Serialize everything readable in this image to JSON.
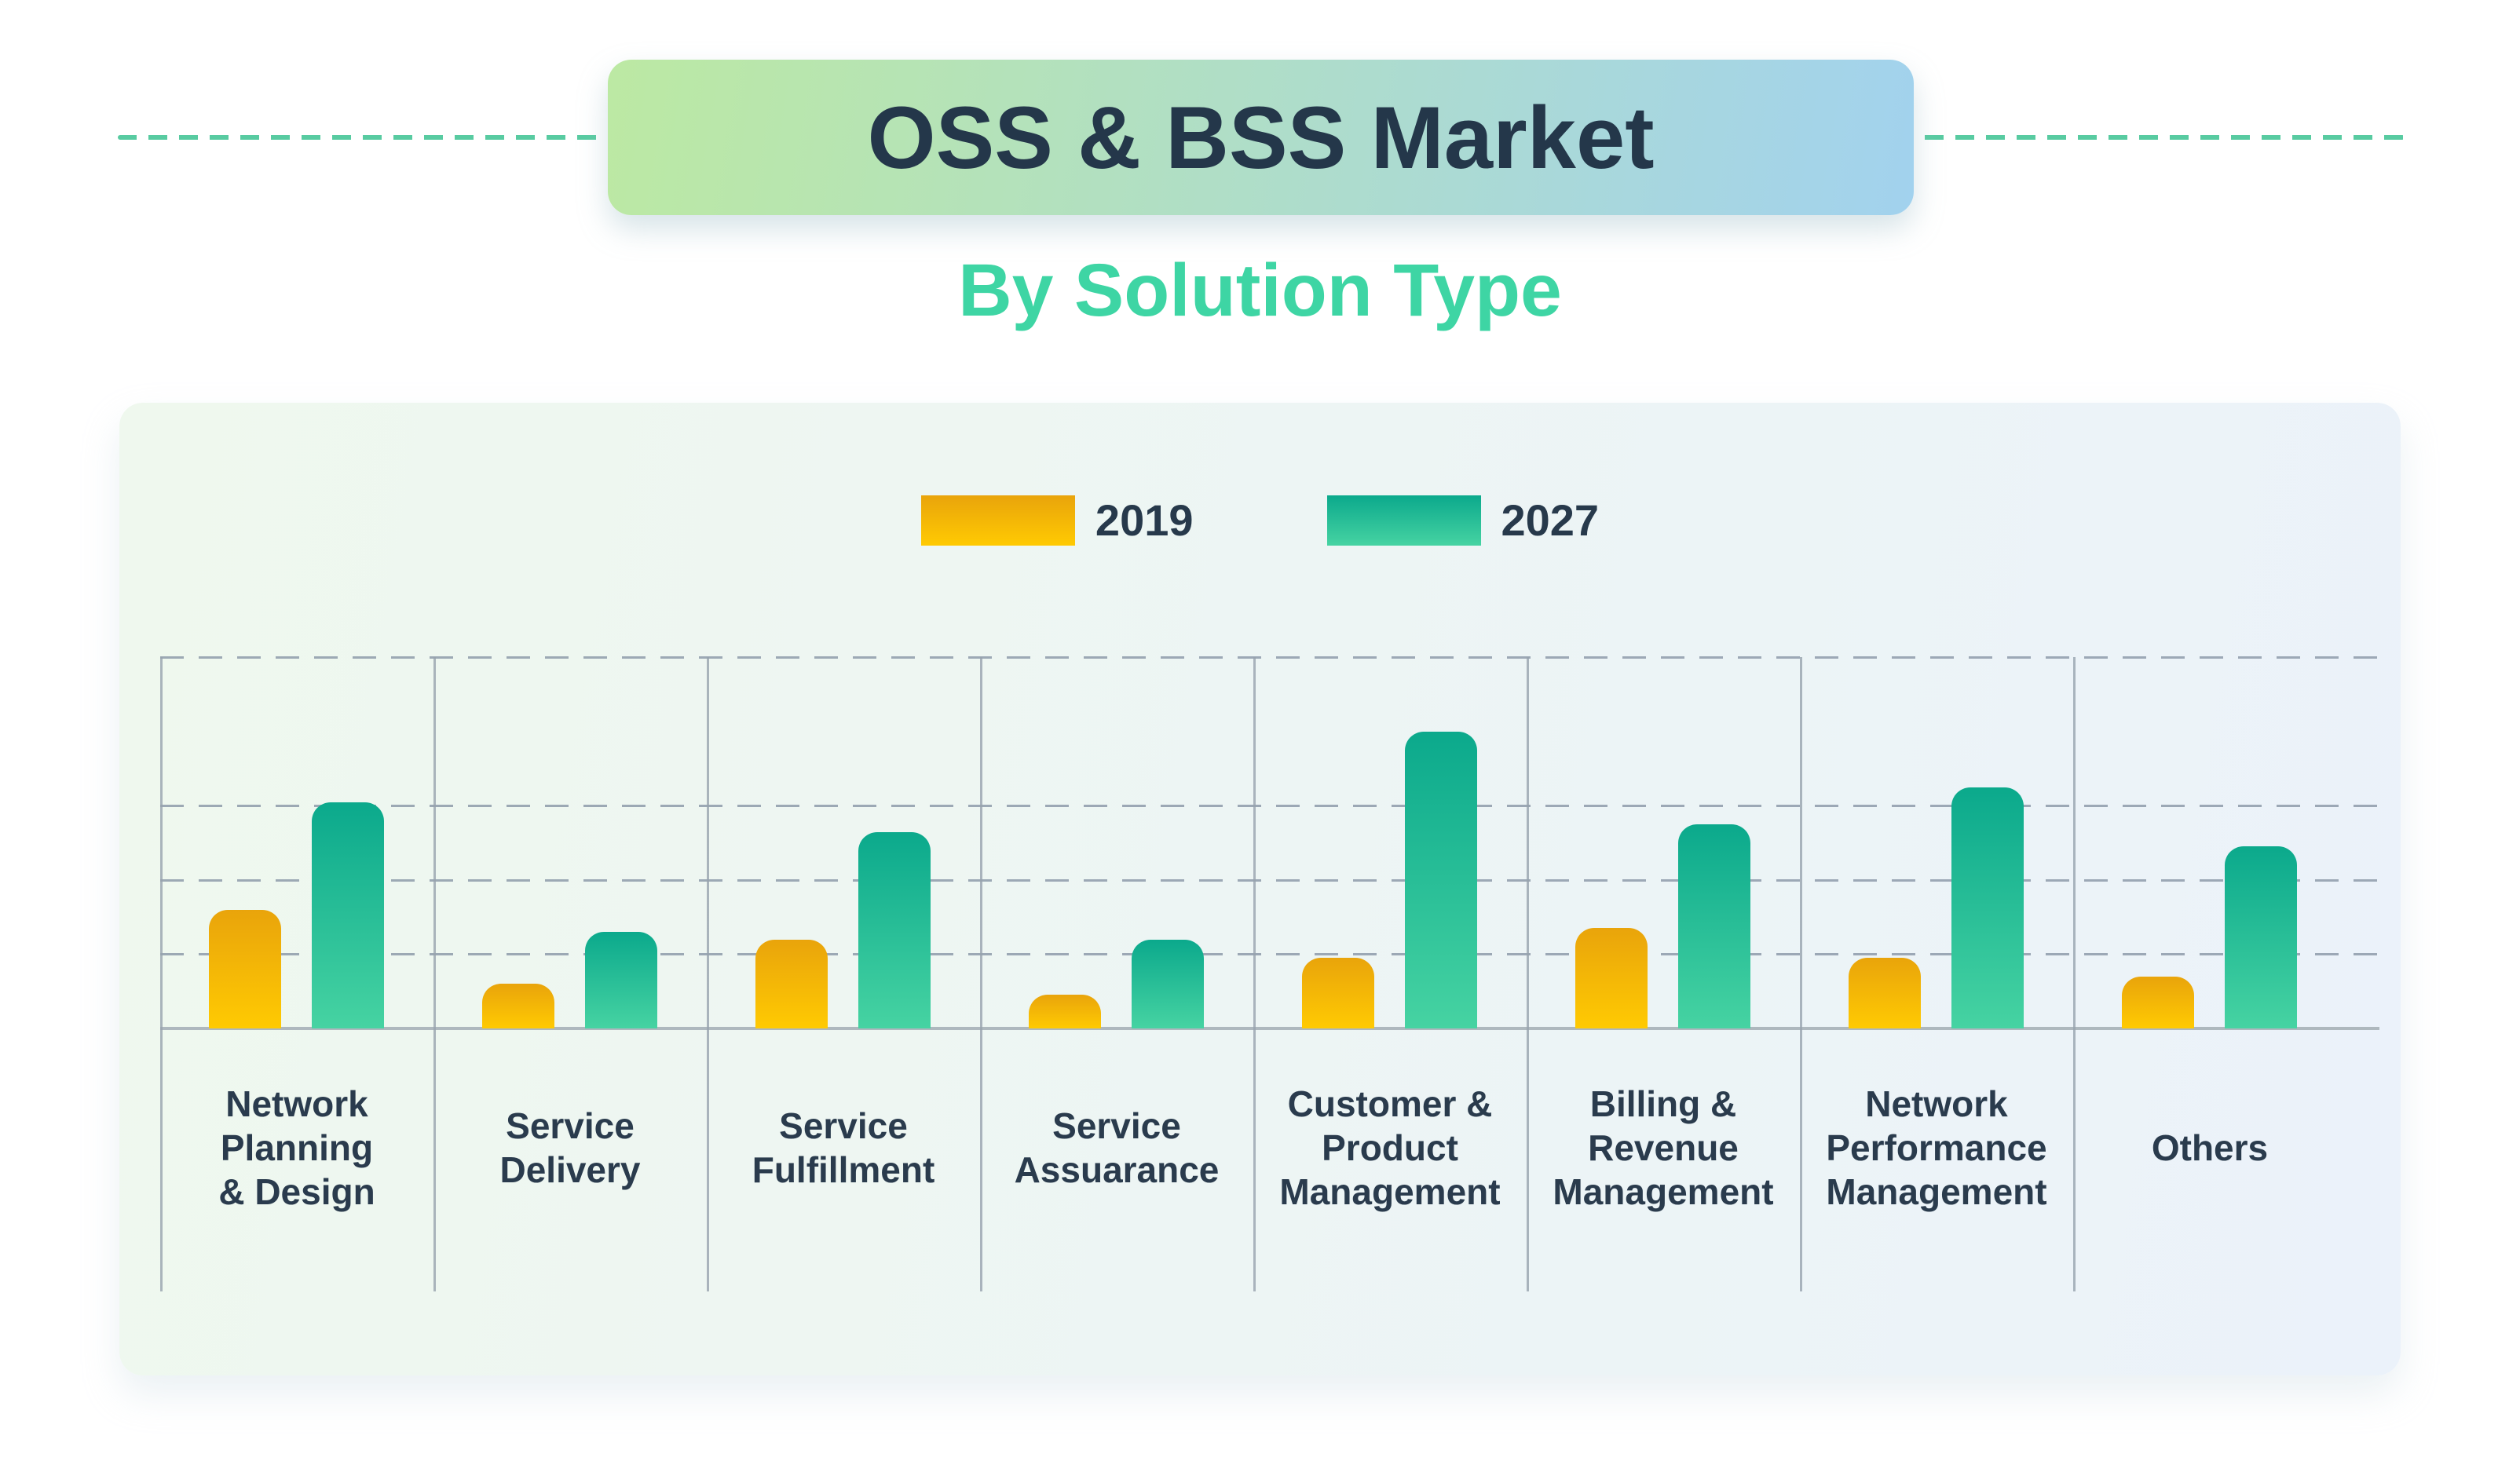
{
  "header": {
    "title": "OSS & BSS Market",
    "subtitle": "By Solution Type"
  },
  "legend": {
    "items": [
      {
        "label": "2019",
        "color_top": "#e9a40b",
        "color_bottom": "#ffca02"
      },
      {
        "label": "2027",
        "color_top": "#0ba98c",
        "color_bottom": "#46d3a2"
      }
    ]
  },
  "chart_data": {
    "type": "bar",
    "title": "OSS & BSS Market",
    "subtitle": "By Solution Type",
    "categories": [
      "Network Planning & Design",
      "Service Delivery",
      "Service Fulfillment",
      "Service Assuarance",
      "Customer & Product Management",
      "Billing & Revenue Management",
      "Network Performance Management",
      "Others"
    ],
    "category_label_lines": [
      [
        "Network",
        "Planning",
        "& Design"
      ],
      [
        "Service",
        "Delivery"
      ],
      [
        "Service",
        "Fulfillment"
      ],
      [
        "Service",
        "Assuarance"
      ],
      [
        "Customer &",
        "Product",
        "Management"
      ],
      [
        "Billing &",
        "Revenue",
        "Management"
      ],
      [
        "Network",
        "Performance",
        "Management"
      ],
      [
        "Others"
      ]
    ],
    "series": [
      {
        "name": "2019",
        "values": [
          1.6,
          0.6,
          1.2,
          0.45,
          0.95,
          1.35,
          0.95,
          0.7
        ],
        "color_top": "#e9a40b",
        "color_bottom": "#ffca02"
      },
      {
        "name": "2027",
        "values": [
          3.05,
          1.3,
          2.65,
          1.2,
          4.0,
          2.75,
          3.25,
          2.45
        ],
        "color_top": "#0ba98c",
        "color_bottom": "#46d3a2"
      }
    ],
    "value_units": "relative (no numeric axis labels shown)",
    "xlabel": "",
    "ylabel": "",
    "ylim": [
      0,
      5.5
    ],
    "gridline_values": [
      1,
      2,
      3,
      5
    ],
    "grid": "horizontal dashed gridlines + solid vertical category separators",
    "legend_position": "top-center"
  },
  "colors": {
    "page_background": "#ffffff",
    "title_text": "#24374a",
    "title_box_gradient_left": "#bce9a3",
    "title_box_gradient_right": "#a2d2ee",
    "subtitle_text": "#3ed5a4",
    "header_dash_line": "#58cba1",
    "panel_gradient_left": "#eff8ee",
    "panel_gradient_right": "#ebf2fa",
    "gridline": "#8e9baa",
    "divider": "#97a3ae",
    "baseline": "#aeb8be",
    "category_label_text": "#2a3b4d",
    "legend_label_text": "#27394b"
  }
}
